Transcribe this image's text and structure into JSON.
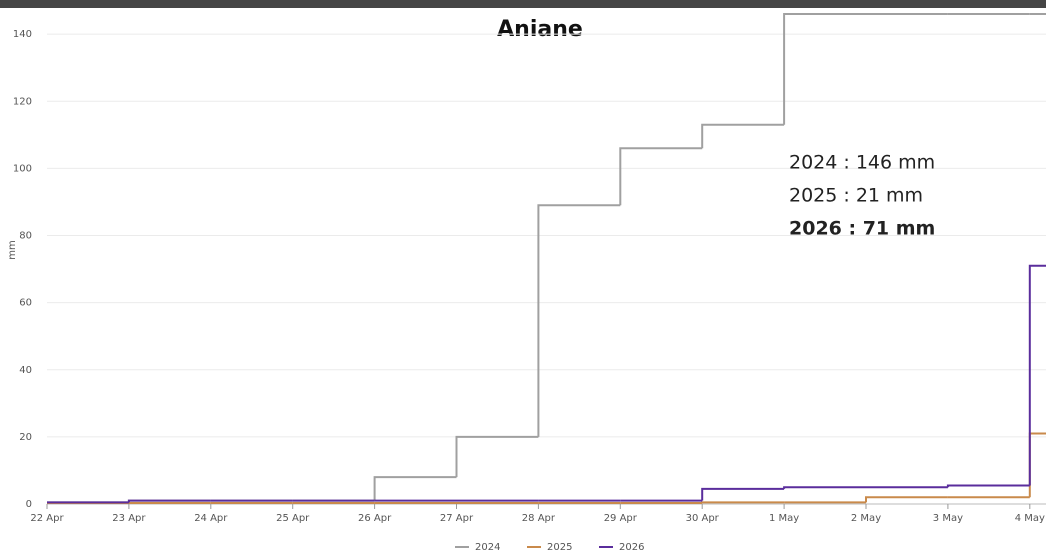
{
  "chart_data": {
    "type": "step",
    "title": "Aniane",
    "y_label": "mm",
    "categories": [
      "22 Apr",
      "23 Apr",
      "24 Apr",
      "25 Apr",
      "26 Apr",
      "27 Apr",
      "28 Apr",
      "29 Apr",
      "30 Apr",
      "1 May",
      "2 May",
      "3 May",
      "4 May"
    ],
    "series": [
      {
        "name": "2024",
        "color": "#a0a0a0",
        "values": [
          0.5,
          1,
          1,
          1,
          8,
          20,
          89,
          106,
          113,
          146,
          146,
          146,
          146
        ]
      },
      {
        "name": "2025",
        "color": "#c98a4b",
        "values": [
          0.3,
          0.3,
          0.3,
          0.3,
          0.3,
          0.3,
          0.3,
          0.3,
          0.5,
          0.5,
          2,
          2,
          21
        ]
      },
      {
        "name": "2026",
        "color": "#5a2d9c",
        "values": [
          0.5,
          1,
          1,
          1,
          1,
          1,
          1,
          1,
          4.5,
          5,
          5,
          5.5,
          71
        ]
      }
    ],
    "ylim": [
      0,
      146
    ],
    "yticks": [
      0,
      20,
      40,
      60,
      80,
      100,
      120,
      140
    ],
    "grid": true,
    "annotations": [
      {
        "text": "2024 : 146 mm",
        "bold": false
      },
      {
        "text": "2025 : 21 mm",
        "bold": false
      },
      {
        "text": "2026 : 71 mm",
        "bold": true
      }
    ],
    "legend": "bottom"
  }
}
